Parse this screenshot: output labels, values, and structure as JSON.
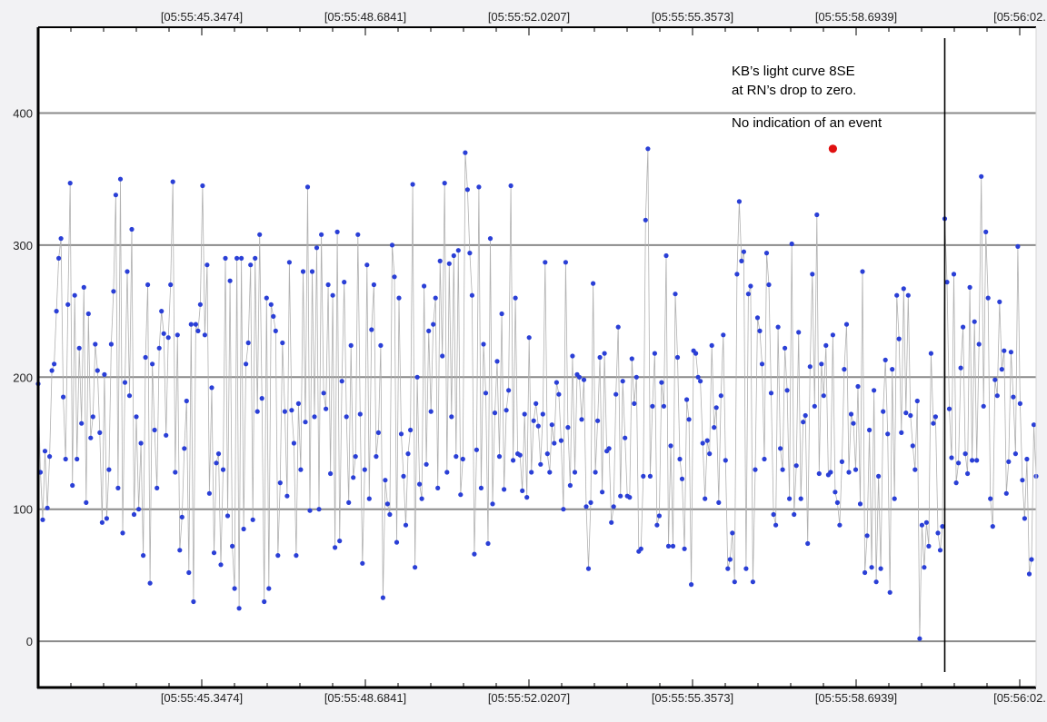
{
  "chart_data": {
    "type": "scatter",
    "title": "",
    "xlabel": "",
    "ylabel": "",
    "x_tick_labels": [
      "[05:55:45.3474]",
      "[05:55:48.6841]",
      "[05:55:52.0207]",
      "[05:55:55.3573]",
      "[05:55:58.6939]",
      "[05:56:02."
    ],
    "y_tick_labels": [
      "0",
      "100",
      "200",
      "300",
      "400"
    ],
    "y_ticks": [
      0,
      100,
      200,
      300,
      400
    ],
    "ylim": [
      -35,
      465
    ],
    "grid": "horizontal",
    "annotation": {
      "line1": "KB’s light curve 8SE",
      "line2": "at RN’s drop to zero.",
      "line3": "No indication of an event"
    },
    "marker_line_frame": 397,
    "highlight_point": {
      "frame": 348,
      "value": 373
    },
    "colors": {
      "point": "#2a3fd6",
      "highlight": "#e01010",
      "line": "#b0b0b0",
      "grid": "#8a8a8a",
      "frame": "#000000",
      "background": "#ffffff"
    },
    "series": [
      {
        "values": [
          195,
          128,
          92,
          144,
          101,
          140,
          205,
          210,
          250,
          290,
          305,
          185,
          138,
          255,
          347,
          118,
          262,
          138,
          222,
          165,
          268,
          105,
          248,
          154,
          170,
          225,
          205,
          158,
          90,
          202,
          93,
          130,
          225,
          265,
          338,
          116,
          350,
          82,
          196,
          280,
          186,
          312,
          96,
          170,
          100,
          150,
          65,
          215,
          270,
          44,
          210,
          160,
          116,
          222,
          250,
          233,
          156,
          230,
          270,
          348,
          128,
          232,
          69,
          94,
          146,
          182,
          52,
          240,
          30,
          240,
          235,
          255,
          345,
          232,
          285,
          112,
          192,
          67,
          135,
          142,
          58,
          130,
          290,
          95,
          273,
          72,
          40,
          290,
          25,
          290,
          85,
          210,
          226,
          285,
          92,
          290,
          174,
          308,
          184,
          30,
          260,
          40,
          255,
          246,
          235,
          65,
          120,
          226,
          174,
          110,
          287,
          175,
          150,
          65,
          180,
          130,
          280,
          166,
          344,
          99,
          280,
          170,
          298,
          100,
          308,
          188,
          176,
          270,
          127,
          262,
          71,
          310,
          76,
          197,
          272,
          170,
          105,
          224,
          124,
          140,
          308,
          172,
          59,
          130,
          285,
          108,
          236,
          270,
          140,
          158,
          224,
          33,
          122,
          104,
          96,
          300,
          276,
          75,
          260,
          157,
          125,
          88,
          142,
          160,
          346,
          56,
          200,
          119,
          108,
          269,
          134,
          235,
          174,
          240,
          260,
          116,
          288,
          216,
          347,
          128,
          286,
          170,
          292,
          140,
          296,
          111,
          138,
          370,
          342,
          294,
          262,
          66,
          145,
          344,
          116,
          225,
          188,
          74,
          305,
          104,
          173,
          212,
          140,
          248,
          115,
          175,
          190,
          345,
          137,
          260,
          142,
          141,
          114,
          172,
          109,
          230,
          128,
          167,
          180,
          163,
          134,
          172,
          287,
          142,
          128,
          164,
          150,
          196,
          187,
          152,
          100,
          287,
          162,
          118,
          216,
          128,
          202,
          200,
          168,
          198,
          102,
          55,
          105,
          271,
          128,
          167,
          215,
          113,
          218,
          144,
          146,
          90,
          102,
          187,
          238,
          110,
          197,
          154,
          110,
          109,
          214,
          180,
          200,
          68,
          70,
          125,
          319,
          373,
          125,
          178,
          218,
          88,
          95,
          196,
          178,
          292,
          72,
          148,
          72,
          263,
          215,
          138,
          123,
          70,
          183,
          168,
          43,
          220,
          218,
          200,
          197,
          150,
          108,
          152,
          142,
          224,
          162,
          177,
          105,
          186,
          232,
          137,
          55,
          62,
          82,
          45,
          278,
          333,
          288,
          295,
          55,
          263,
          269,
          45,
          130,
          245,
          235,
          210,
          138,
          294,
          270,
          188,
          96,
          88,
          238,
          146,
          130,
          222,
          190,
          108,
          301,
          96,
          133,
          234,
          108,
          166,
          171,
          74,
          208,
          278,
          178,
          323,
          127,
          210,
          186,
          224,
          126,
          128,
          232,
          113,
          105,
          88,
          136,
          206,
          240,
          128,
          172,
          165,
          130,
          193,
          104,
          280,
          52,
          80,
          160,
          56,
          190,
          45,
          125,
          55,
          174,
          213,
          157,
          37,
          206,
          108,
          262,
          229,
          158,
          267,
          173,
          262,
          171,
          148,
          130,
          182,
          2,
          88,
          56,
          90,
          72,
          218,
          165,
          170,
          82,
          69,
          87,
          320,
          272,
          176,
          139,
          278,
          120,
          135,
          207,
          238,
          142,
          127,
          268,
          137,
          242,
          137,
          225,
          352,
          178,
          310,
          260,
          108,
          87,
          198,
          186,
          257,
          206,
          220,
          112,
          136,
          219,
          185,
          142,
          299,
          180,
          122,
          93,
          138,
          51,
          62,
          164,
          125
        ]
      }
    ]
  }
}
